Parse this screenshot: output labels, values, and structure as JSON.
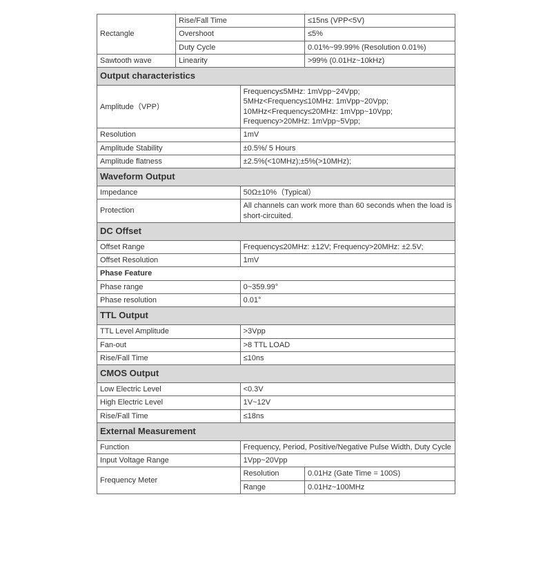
{
  "top": {
    "rectangle": "Rectangle",
    "risefall_l": "Rise/Fall Time",
    "risefall_v": "≤15ns (VPP<5V)",
    "overshoot_l": "Overshoot",
    "overshoot_v": "≤5%",
    "duty_l": "Duty Cycle",
    "duty_v": "0.01%~99.99% (Resolution 0.01%)",
    "sawtooth": "Sawtooth wave",
    "linearity_l": "Linearity",
    "linearity_v": ">99% (0.01Hz~10kHz)"
  },
  "output_char": {
    "header": "Output characteristics",
    "amp_l": "Amplitude（VPP）",
    "amp_v": "Frequency≤5MHz: 1mVpp~24Vpp;\n5MHz<Frequency≤10MHz: 1mVpp~20Vpp;\n10MHz<Frequency≤20MHz: 1mVpp~10Vpp;\nFrequency>20MHz: 1mVpp~5Vpp;",
    "res_l": "Resolution",
    "res_v": "1mV",
    "stab_l": "Amplitude Stability",
    "stab_v": "±0.5%/ 5 Hours",
    "flat_l": "Amplitude flatness",
    "flat_v": "±2.5%(<10MHz);±5%(>10MHz);"
  },
  "waveform": {
    "header": "Waveform Output",
    "imp_l": "Impedance",
    "imp_v": "50Ω±10%（Typical）",
    "prot_l": "Protection",
    "prot_v": "All channels can work more than 60 seconds when the load is short-circuited."
  },
  "dc": {
    "header": "DC Offset",
    "range_l": "Offset Range",
    "range_v": "Frequency≤20MHz: ±12V;   Frequency>20MHz: ±2.5V;",
    "res_l": "Offset Resolution",
    "res_v": "1mV",
    "phase_header": "Phase Feature",
    "pr_l": "Phase range",
    "pr_v": "0~359.99°",
    "pres_l": "Phase resolution",
    "pres_v": "0.01°"
  },
  "ttl": {
    "header": "TTL Output",
    "lvl_l": "TTL Level Amplitude",
    "lvl_v": ">3Vpp",
    "fan_l": "Fan-out",
    "fan_v": ">8 TTL LOAD",
    "rf_l": "Rise/Fall Time",
    "rf_v": "≤10ns"
  },
  "cmos": {
    "header": "CMOS Output",
    "low_l": "Low Electric Level",
    "low_v": "<0.3V",
    "high_l": "High Electric Level",
    "high_v": "1V~12V",
    "rf_l": "Rise/Fall Time",
    "rf_v": "≤18ns"
  },
  "ext": {
    "header": "External Measurement",
    "func_l": "Function",
    "func_v": "Frequency, Period, Positive/Negative Pulse Width, Duty Cycle",
    "ivr_l": "Input Voltage Range",
    "ivr_v": "1Vpp~20Vpp",
    "fm_l": "Frequency Meter",
    "fm_res_l": "Resolution",
    "fm_res_v": "0.01Hz (Gate Time = 100S)",
    "fm_rng_l": "Range",
    "fm_rng_v": "0.01Hz~100MHz"
  }
}
